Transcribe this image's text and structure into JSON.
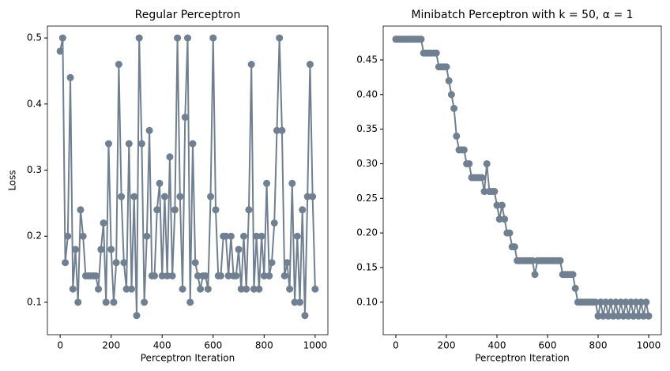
{
  "chart_data": [
    {
      "type": "line",
      "title": "Regular Perceptron",
      "x_label": "Perceptron Iteration",
      "y_label": "Loss",
      "xlim": [
        -50,
        1050
      ],
      "ylim": [
        0.051,
        0.518
      ],
      "xticks": [
        0,
        200,
        400,
        600,
        800,
        1000
      ],
      "yticks": [
        0.1,
        0.2,
        0.3,
        0.4,
        0.5
      ],
      "series": [
        {
          "color": "#708090",
          "x": [
            0,
            10,
            20,
            30,
            40,
            50,
            60,
            70,
            80,
            90,
            100,
            110,
            120,
            130,
            140,
            150,
            160,
            170,
            180,
            190,
            200,
            210,
            220,
            230,
            240,
            250,
            260,
            270,
            280,
            290,
            300,
            310,
            320,
            330,
            340,
            350,
            360,
            370,
            380,
            390,
            400,
            410,
            420,
            430,
            440,
            450,
            460,
            470,
            480,
            490,
            500,
            510,
            520,
            530,
            540,
            550,
            560,
            570,
            580,
            590,
            600,
            610,
            620,
            630,
            640,
            650,
            660,
            670,
            680,
            690,
            700,
            710,
            720,
            730,
            740,
            750,
            760,
            770,
            780,
            790,
            800,
            810,
            820,
            830,
            840,
            850,
            860,
            870,
            880,
            890,
            900,
            910,
            920,
            930,
            940,
            950,
            960,
            970,
            980,
            990,
            1000
          ],
          "values": [
            0.48,
            0.5,
            0.16,
            0.2,
            0.44,
            0.12,
            0.18,
            0.1,
            0.24,
            0.2,
            0.14,
            0.14,
            0.14,
            0.14,
            0.14,
            0.12,
            0.18,
            0.22,
            0.1,
            0.34,
            0.18,
            0.1,
            0.16,
            0.46,
            0.26,
            0.16,
            0.12,
            0.34,
            0.12,
            0.26,
            0.08,
            0.5,
            0.34,
            0.1,
            0.2,
            0.36,
            0.14,
            0.14,
            0.24,
            0.28,
            0.14,
            0.26,
            0.14,
            0.32,
            0.14,
            0.24,
            0.5,
            0.26,
            0.12,
            0.38,
            0.5,
            0.1,
            0.34,
            0.16,
            0.14,
            0.12,
            0.14,
            0.14,
            0.12,
            0.26,
            0.5,
            0.24,
            0.14,
            0.14,
            0.2,
            0.2,
            0.14,
            0.2,
            0.14,
            0.14,
            0.18,
            0.12,
            0.2,
            0.12,
            0.24,
            0.46,
            0.12,
            0.2,
            0.12,
            0.2,
            0.14,
            0.28,
            0.14,
            0.16,
            0.22,
            0.36,
            0.5,
            0.36,
            0.14,
            0.16,
            0.12,
            0.28,
            0.1,
            0.2,
            0.1,
            0.24,
            0.08,
            0.26,
            0.46,
            0.26,
            0.12
          ]
        }
      ]
    },
    {
      "type": "line",
      "title": "Minibatch Perceptron with k = 50, α = 1",
      "x_label": "Perceptron Iteration",
      "xlim": [
        -50,
        1050
      ],
      "ylim": [
        0.053,
        0.499
      ],
      "xticks": [
        0,
        200,
        400,
        600,
        800,
        1000
      ],
      "yticks": [
        {
          "value": 0.1,
          "label": "0.10"
        },
        0.15,
        {
          "value": 0.2,
          "label": "0.20"
        },
        0.25,
        {
          "value": 0.3,
          "label": "0.30"
        },
        0.35,
        {
          "value": 0.4,
          "label": "0.40"
        },
        0.45
      ],
      "series": [
        {
          "color": "#708090",
          "x": [
            0,
            10,
            20,
            30,
            40,
            50,
            60,
            70,
            80,
            90,
            100,
            110,
            120,
            130,
            140,
            150,
            160,
            170,
            180,
            190,
            200,
            210,
            220,
            230,
            240,
            250,
            260,
            270,
            280,
            290,
            300,
            310,
            320,
            330,
            340,
            350,
            360,
            370,
            380,
            390,
            400,
            410,
            420,
            430,
            440,
            450,
            460,
            470,
            480,
            490,
            500,
            510,
            520,
            530,
            540,
            550,
            560,
            570,
            580,
            590,
            600,
            610,
            620,
            630,
            640,
            650,
            660,
            670,
            680,
            690,
            700,
            710,
            720,
            730,
            740,
            750,
            760,
            770,
            780,
            790,
            800,
            810,
            820,
            830,
            840,
            850,
            860,
            870,
            880,
            890,
            900,
            910,
            920,
            930,
            940,
            950,
            960,
            970,
            980,
            990,
            1000
          ],
          "values": [
            0.48,
            0.48,
            0.48,
            0.48,
            0.48,
            0.48,
            0.48,
            0.48,
            0.48,
            0.48,
            0.48,
            0.46,
            0.46,
            0.46,
            0.46,
            0.46,
            0.46,
            0.44,
            0.44,
            0.44,
            0.44,
            0.42,
            0.4,
            0.38,
            0.34,
            0.32,
            0.32,
            0.32,
            0.3,
            0.3,
            0.28,
            0.28,
            0.28,
            0.28,
            0.28,
            0.26,
            0.3,
            0.26,
            0.26,
            0.26,
            0.24,
            0.22,
            0.24,
            0.22,
            0.2,
            0.2,
            0.18,
            0.18,
            0.16,
            0.16,
            0.16,
            0.16,
            0.16,
            0.16,
            0.16,
            0.14,
            0.16,
            0.16,
            0.16,
            0.16,
            0.16,
            0.16,
            0.16,
            0.16,
            0.16,
            0.16,
            0.14,
            0.14,
            0.14,
            0.14,
            0.14,
            0.12,
            0.1,
            0.1,
            0.1,
            0.1,
            0.1,
            0.1,
            0.1,
            0.1,
            0.08,
            0.1,
            0.08,
            0.1,
            0.08,
            0.1,
            0.08,
            0.1,
            0.08,
            0.1,
            0.08,
            0.1,
            0.08,
            0.1,
            0.08,
            0.1,
            0.08,
            0.1,
            0.08,
            0.1,
            0.08
          ]
        }
      ]
    }
  ]
}
